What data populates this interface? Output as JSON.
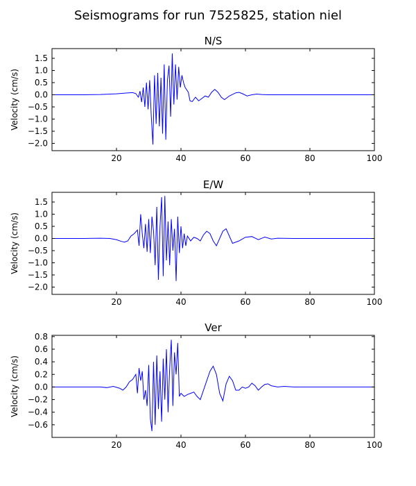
{
  "figure": {
    "suptitle": "Seismograms for run 7525825, station niel"
  },
  "chart_data": [
    {
      "type": "line",
      "title": "N/S",
      "xlabel": "",
      "ylabel": "Velocity (cm/s)",
      "xlim": [
        0,
        100
      ],
      "ylim": [
        -2.3,
        1.9
      ],
      "xticks": [
        20,
        40,
        60,
        80,
        100
      ],
      "yticks": [
        -2.0,
        -1.5,
        -1.0,
        -0.5,
        0.0,
        0.5,
        1.0,
        1.5
      ],
      "ytick_labels": [
        "−2.0",
        "−1.5",
        "−1.0",
        "−0.5",
        "0.0",
        "0.5",
        "1.0",
        "1.5"
      ],
      "color": "#0000ff",
      "series": [
        {
          "x": [
            0,
            10,
            15,
            20,
            23,
            25,
            26,
            26.8,
            27.3,
            27.8,
            28.3,
            28.8,
            29.3,
            29.8,
            30.3,
            30.8,
            31.3,
            31.8,
            32.3,
            32.8,
            33.3,
            33.8,
            34.3,
            34.8,
            35.3,
            35.8,
            36.3,
            36.8,
            37.3,
            37.8,
            38.3,
            38.8,
            39.3,
            39.8,
            40.3,
            40.8,
            41.3,
            41.8,
            42.3,
            42.8,
            43.5,
            44.5,
            45.5,
            46.5,
            47.5,
            48.5,
            49.5,
            50.5,
            51.5,
            52.5,
            53.5,
            55,
            57,
            58,
            59,
            60.5,
            62,
            63.5,
            65,
            67,
            70,
            80,
            90,
            100
          ],
          "y": [
            0,
            0,
            0.01,
            0.04,
            0.07,
            0.09,
            0.05,
            -0.1,
            0.15,
            -0.3,
            0.3,
            -0.5,
            0.5,
            -0.6,
            0.6,
            -0.9,
            -2.05,
            0.8,
            -1.2,
            0.9,
            -1.3,
            0.7,
            -1.6,
            1.25,
            -1.85,
            0.6,
            1.2,
            -0.9,
            1.7,
            -0.4,
            1.25,
            -0.2,
            1.15,
            0.3,
            0.8,
            0.5,
            0.3,
            0.2,
            0.1,
            -0.25,
            -0.28,
            -0.1,
            -0.25,
            -0.15,
            -0.05,
            -0.1,
            0.1,
            0.22,
            0.1,
            -0.1,
            -0.2,
            -0.05,
            0.08,
            0.1,
            0.05,
            -0.05,
            0.0,
            0.03,
            0.01,
            0,
            0,
            0,
            0,
            0
          ]
        }
      ]
    },
    {
      "type": "line",
      "title": "E/W",
      "xlabel": "",
      "ylabel": "Velocity (cm/s)",
      "xlim": [
        0,
        100
      ],
      "ylim": [
        -2.3,
        1.9
      ],
      "xticks": [
        20,
        40,
        60,
        80,
        100
      ],
      "yticks": [
        -2.0,
        -1.5,
        -1.0,
        -0.5,
        0.0,
        0.5,
        1.0,
        1.5
      ],
      "ytick_labels": [
        "−2.0",
        "−1.5",
        "−1.0",
        "−0.5",
        "0.0",
        "0.5",
        "1.0",
        "1.5"
      ],
      "color": "#0000ff",
      "series": [
        {
          "x": [
            0,
            10,
            15,
            18,
            20,
            21.5,
            22.5,
            23.5,
            24.5,
            25.5,
            26.5,
            27,
            27.5,
            28,
            28.5,
            29,
            29.5,
            30,
            30.5,
            31,
            31.5,
            32,
            32.5,
            33,
            33.5,
            34,
            34.5,
            35,
            35.5,
            36,
            36.5,
            37,
            37.5,
            38,
            38.5,
            39,
            39.5,
            40,
            40.5,
            41,
            41.5,
            42,
            43,
            44,
            45,
            46,
            47,
            48,
            49,
            50,
            51,
            52,
            53,
            54,
            55,
            56,
            58,
            60,
            62,
            64,
            66,
            68,
            70,
            75,
            80,
            90,
            100
          ],
          "y": [
            0,
            0,
            0.01,
            0.0,
            -0.05,
            -0.12,
            -0.15,
            -0.1,
            0.1,
            0.2,
            0.35,
            -0.3,
            1.0,
            0.2,
            -0.4,
            0.6,
            -0.55,
            0.8,
            -0.6,
            0.9,
            0.3,
            -1.1,
            1.3,
            -1.7,
            0.5,
            1.7,
            -1.55,
            1.75,
            -0.9,
            0.7,
            -1.1,
            0.8,
            -0.5,
            0.4,
            -1.75,
            0.9,
            -0.6,
            0.5,
            -0.4,
            0.2,
            -0.3,
            0.1,
            -0.1,
            0.05,
            0.0,
            -0.1,
            0.15,
            0.3,
            0.2,
            -0.1,
            -0.3,
            0.0,
            0.3,
            0.4,
            0.1,
            -0.2,
            -0.1,
            0.05,
            0.08,
            -0.05,
            0.06,
            -0.02,
            0.01,
            0,
            0,
            0,
            0
          ]
        }
      ]
    },
    {
      "type": "line",
      "title": "Ver",
      "xlabel": "",
      "ylabel": "Velocity (cm/s)",
      "xlim": [
        0,
        100
      ],
      "ylim": [
        -0.8,
        0.82
      ],
      "xticks": [
        20,
        40,
        60,
        80,
        100
      ],
      "yticks": [
        -0.6,
        -0.4,
        -0.2,
        0.0,
        0.2,
        0.4,
        0.6,
        0.8
      ],
      "ytick_labels": [
        "−0.6",
        "−0.4",
        "−0.2",
        "0.0",
        "0.2",
        "0.4",
        "0.6",
        "0.8"
      ],
      "color": "#0000ff",
      "series": [
        {
          "x": [
            0,
            10,
            15,
            17,
            19,
            21,
            22,
            23,
            24,
            25,
            26,
            26.5,
            27,
            27.5,
            28,
            28.5,
            29,
            29.5,
            30,
            30.5,
            31,
            31.5,
            32,
            32.5,
            33,
            33.5,
            34,
            34.5,
            35,
            35.5,
            36,
            36.5,
            37,
            37.5,
            38,
            38.5,
            39,
            39.5,
            40,
            41,
            42,
            43,
            44,
            45,
            46,
            47,
            48,
            49,
            50,
            51,
            52,
            53,
            54,
            55,
            56,
            57,
            58,
            59,
            60,
            61,
            62,
            63,
            64,
            65,
            66,
            67,
            68,
            70,
            72,
            75,
            80,
            90,
            100
          ],
          "y": [
            0,
            0,
            0.0,
            -0.01,
            0.01,
            -0.02,
            -0.05,
            0.0,
            0.08,
            0.12,
            0.2,
            -0.1,
            0.3,
            0.1,
            0.25,
            -0.2,
            -0.05,
            -0.3,
            0.35,
            -0.5,
            -0.7,
            0.4,
            -0.6,
            0.5,
            -0.35,
            0.25,
            -0.55,
            0.45,
            -0.2,
            0.6,
            -0.4,
            0.3,
            0.75,
            -0.3,
            0.55,
            0.2,
            0.7,
            -0.15,
            -0.1,
            -0.15,
            -0.12,
            -0.1,
            -0.08,
            -0.15,
            -0.2,
            -0.05,
            0.1,
            0.25,
            0.33,
            0.2,
            -0.1,
            -0.22,
            0.05,
            0.17,
            0.1,
            -0.05,
            -0.05,
            0.0,
            -0.02,
            0.0,
            0.06,
            0.02,
            -0.05,
            0.0,
            0.04,
            0.05,
            0.02,
            0.0,
            0.01,
            0,
            0,
            0,
            0
          ]
        }
      ]
    }
  ]
}
